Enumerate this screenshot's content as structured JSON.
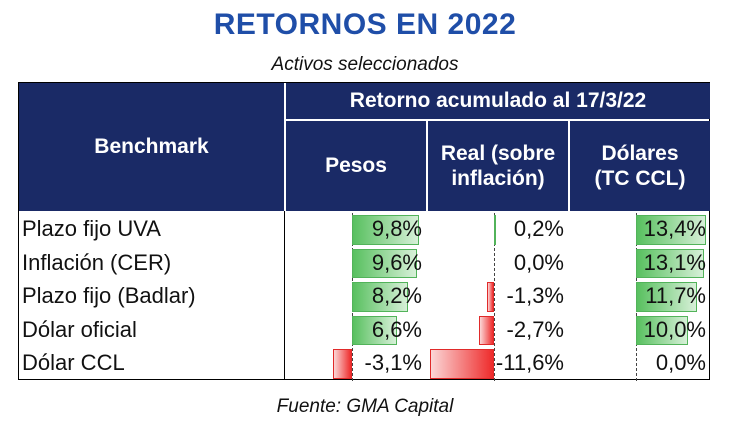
{
  "title": "RETORNOS EN 2022",
  "subtitle": "Activos seleccionados",
  "source": "Fuente: GMA Capital",
  "headers": {
    "benchmark": "Benchmark",
    "group": "Retorno acumulado al 17/3/22",
    "pesos": "Pesos",
    "real": "Real (sobre inflación)",
    "dolares": "Dólares (TC CCL)"
  },
  "colors": {
    "header_bg": "#1a2a66",
    "title": "#1f4ea8",
    "positive": "#58c05f",
    "negative": "#ee2b2b"
  },
  "chart_data": {
    "type": "table",
    "columns": [
      "Pesos",
      "Real (sobre inflación)",
      "Dólares (TC CCL)"
    ],
    "rows": [
      {
        "label": "Plazo fijo UVA",
        "values": [
          9.8,
          0.2,
          13.4
        ],
        "text": [
          "9,8%",
          "0,2%",
          "13,4%"
        ]
      },
      {
        "label": "Inflación (CER)",
        "values": [
          9.6,
          0.0,
          13.1
        ],
        "text": [
          "9,6%",
          "0,0%",
          "13,1%"
        ]
      },
      {
        "label": "Plazo fijo (Badlar)",
        "values": [
          8.2,
          -1.3,
          11.7
        ],
        "text": [
          "8,2%",
          "-1,3%",
          "11,7%"
        ]
      },
      {
        "label": "Dólar oficial",
        "values": [
          6.6,
          -2.7,
          10.0
        ],
        "text": [
          "6,6%",
          "-2,7%",
          "10,0%"
        ]
      },
      {
        "label": "Dólar CCL",
        "values": [
          -3.1,
          -11.6,
          0.0
        ],
        "text": [
          "-3,1%",
          "-11,6%",
          "0,0%"
        ]
      }
    ]
  }
}
